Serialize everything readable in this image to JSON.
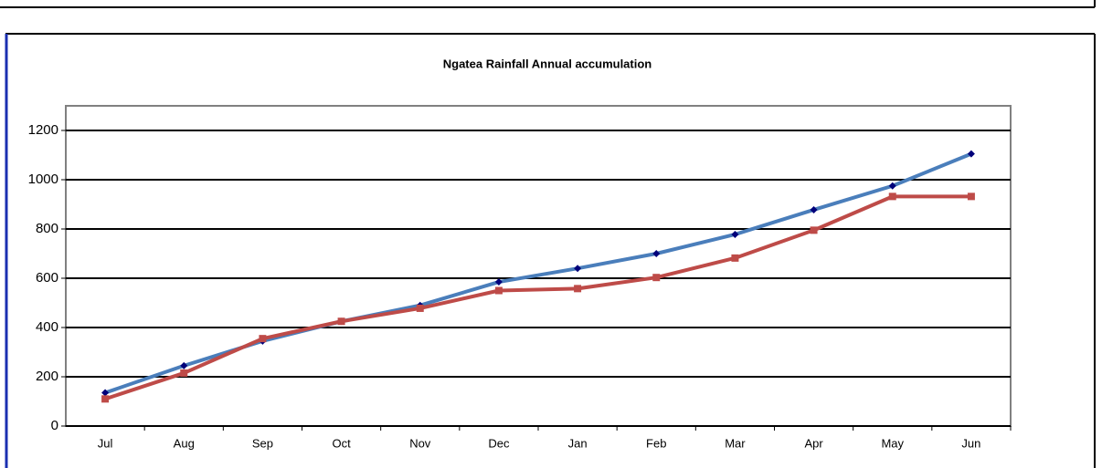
{
  "chart_data": {
    "type": "line",
    "title": "Ngatea Rainfall Annual accumulation",
    "categories": [
      "Jul",
      "Aug",
      "Sep",
      "Oct",
      "Nov",
      "Dec",
      "Jan",
      "Feb",
      "Mar",
      "Apr",
      "May",
      "Jun"
    ],
    "series": [
      {
        "color": "#4a7ebb",
        "marker_color": "#00007a",
        "marker": "diamond",
        "values": [
          135,
          245,
          345,
          425,
          490,
          585,
          640,
          700,
          778,
          878,
          975,
          1105
        ]
      },
      {
        "color": "#be4b48",
        "marker_color": "#be4b48",
        "marker": "square",
        "values": [
          110,
          215,
          355,
          425,
          478,
          550,
          558,
          603,
          682,
          795,
          932,
          932
        ]
      }
    ],
    "ylim": [
      0,
      1300
    ],
    "yticks": [
      0,
      200,
      400,
      600,
      800,
      1000,
      1200
    ],
    "grid": true
  }
}
